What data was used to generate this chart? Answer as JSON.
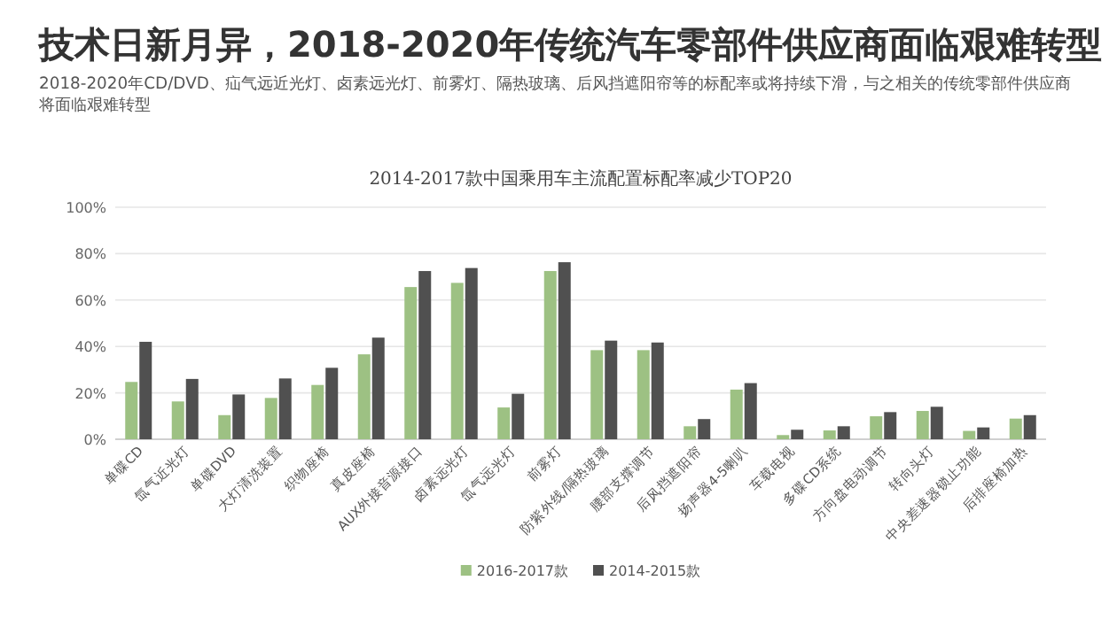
{
  "chart_data": {
    "type": "bar",
    "title": "技术日新月异，2018-2020年传统汽车零部件供应商面临艰难转型",
    "subtitle": "2018-2020年CD/DVD、疝气远近光灯、卤素远光灯、前雾灯、隔热玻璃、后风挡遮阳帘等的标配率或将持续下滑，与之相关的传统零部件供应商将面临艰难转型",
    "annotations": [
      "2014-2017款中国乘用车主流配置标配率减少TOP20"
    ],
    "categories": [
      "单碟CD",
      "氙气近光灯",
      "单碟DVD",
      "大灯清洗装置",
      "织物座椅",
      "真皮座椅",
      "AUX外接音源接口",
      "卤素远光灯",
      "氙气远光灯",
      "前雾灯",
      "防紫外线/隔热玻璃",
      "腰部支撑调节",
      "后风挡遮阳帘",
      "扬声器4-5喇叭",
      "车载电视",
      "多碟CD系统",
      "方向盘电动调节",
      "转向头灯",
      "中央差速器锁止功能",
      "后排座椅加热"
    ],
    "series": [
      {
        "name": "2016-2017款",
        "color": "#9dc183",
        "values": [
          24.7,
          16.3,
          10.4,
          17.8,
          23.4,
          36.6,
          65.6,
          67.4,
          13.7,
          72.5,
          38.4,
          38.4,
          5.6,
          21.4,
          1.8,
          3.8,
          9.9,
          12.2,
          3.6,
          8.9
        ]
      },
      {
        "name": "2014-2015款",
        "color": "#505050",
        "values": [
          42,
          26,
          19.3,
          26.2,
          30.8,
          43.8,
          72.5,
          73.8,
          19.6,
          76.3,
          42.5,
          41.7,
          8.7,
          24.2,
          4.1,
          5.6,
          11.7,
          14,
          5.1,
          10.4
        ]
      }
    ],
    "ylim": [
      0,
      100
    ],
    "yticks": [
      {
        "value": 0,
        "label": "0%"
      },
      {
        "value": 20,
        "label": "20%"
      },
      {
        "value": 40,
        "label": "40%"
      },
      {
        "value": 60,
        "label": "60%"
      },
      {
        "value": 80,
        "label": "80%"
      },
      {
        "value": 100,
        "label": "100%"
      }
    ],
    "grid": "y",
    "legend": "bottom"
  }
}
